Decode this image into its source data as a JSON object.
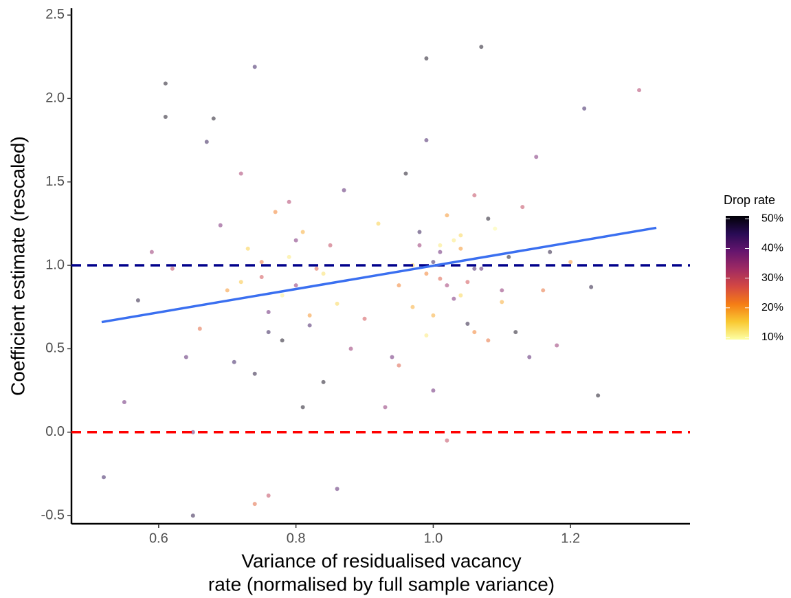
{
  "chart_data": {
    "type": "scatter",
    "xlabel": [
      "Variance of residualised vacancy",
      "rate (normalised by full sample variance)"
    ],
    "ylabel": "Coefficient estimate (rescaled)",
    "xlim": [
      0.473,
      1.374
    ],
    "ylim": [
      -0.549,
      2.541
    ],
    "xticks": [
      0.6,
      0.8,
      {
        "value": 1,
        "label": "1.0"
      },
      1.2
    ],
    "yticks": [
      -0.5,
      {
        "value": 0,
        "label": "0.0"
      },
      0.5,
      {
        "value": 1,
        "label": "1.0"
      },
      1.5,
      {
        "value": 2,
        "label": "2.0"
      },
      2.5
    ],
    "legend": {
      "title": "Drop rate",
      "clim": [
        9.3,
        51
      ],
      "ticks": [
        {
          "value": 10,
          "label": "10%"
        },
        {
          "value": 20,
          "label": "20%"
        },
        {
          "value": 30,
          "label": "30%"
        },
        {
          "value": 40,
          "label": "40%"
        },
        {
          "value": 50,
          "label": "50%"
        }
      ]
    },
    "colormap": [
      "#fcffa4",
      "#f9c932",
      "#f57d15",
      "#d44842",
      "#9f2a63",
      "#65156e",
      "#280b54",
      "#000004"
    ],
    "hlines": [
      {
        "y": 1,
        "color": "#00008b"
      },
      {
        "y": 0,
        "color": "#ff0000"
      }
    ],
    "fit": {
      "x": [
        0.517,
        1.325
      ],
      "y": [
        0.66,
        1.225
      ],
      "color": "#3a6ff0"
    },
    "points": {
      "x": [
        0.52,
        0.55,
        0.57,
        0.59,
        0.61,
        0.62,
        0.64,
        0.65,
        0.66,
        0.68,
        0.69,
        0.7,
        0.71,
        0.72,
        0.73,
        0.74,
        0.75,
        0.76,
        0.77,
        0.78,
        0.79,
        0.8,
        0.81,
        0.82,
        0.83,
        0.84,
        0.85,
        0.86,
        0.87,
        0.88,
        0.72,
        0.75,
        0.78,
        0.8,
        0.82,
        0.76,
        0.79,
        0.84,
        0.74,
        0.81,
        0.9,
        0.92,
        0.94,
        0.95,
        0.96,
        0.97,
        0.98,
        0.99,
        1.0,
        1.01,
        1.02,
        1.03,
        1.04,
        1.05,
        1.06,
        1.07,
        1.08,
        1.09,
        1.1,
        1.11,
        0.97,
        0.99,
        1.01,
        1.03,
        1.05,
        0.98,
        1.0,
        1.02,
        1.04,
        1.06,
        1.12,
        1.13,
        1.14,
        1.15,
        1.16,
        1.17,
        1.18,
        1.2,
        1.22,
        1.24,
        0.95,
        1.0,
        1.04,
        1.08,
        0.93,
        1.02,
        1.06,
        0.99,
        1.1,
        1.01,
        0.61,
        0.74,
        0.99,
        1.07,
        1.3,
        0.65,
        0.76,
        1.23,
        0.86,
        0.67
      ],
      "y": [
        -0.27,
        0.18,
        0.79,
        1.08,
        2.09,
        0.98,
        0.45,
        -0.5,
        0.62,
        1.88,
        1.24,
        0.85,
        0.42,
        1.55,
        1.1,
        0.35,
        0.93,
        0.72,
        1.32,
        0.55,
        1.05,
        0.88,
        1.2,
        0.64,
        0.98,
        0.3,
        1.12,
        0.77,
        1.45,
        0.5,
        0.9,
        1.02,
        0.82,
        1.15,
        0.7,
        0.6,
        1.38,
        0.95,
        -0.43,
        0.15,
        0.68,
        1.25,
        0.45,
        0.88,
        1.55,
        0.75,
        1.12,
        0.58,
        1.02,
        0.92,
        1.3,
        0.8,
        1.18,
        0.65,
        1.42,
        0.98,
        0.55,
        1.22,
        0.85,
        1.05,
        1.0,
        0.95,
        1.08,
        1.15,
        0.9,
        1.2,
        0.7,
        0.88,
        1.1,
        0.98,
        0.6,
        1.35,
        0.45,
        1.65,
        0.85,
        1.08,
        0.52,
        1.02,
        1.94,
        0.22,
        0.4,
        0.25,
        0.82,
        1.28,
        0.15,
        -0.05,
        0.6,
        1.75,
        0.78,
        1.12,
        1.89,
        2.19,
        2.24,
        2.31,
        2.05,
        0.0,
        -0.38,
        0.87,
        -0.34,
        1.74
      ],
      "drop": [
        45,
        40,
        48,
        35,
        50,
        30,
        42,
        47,
        25,
        50,
        38,
        20,
        45,
        33,
        15,
        48,
        28,
        40,
        22,
        50,
        12,
        36,
        18,
        44,
        26,
        50,
        30,
        14,
        42,
        35,
        16,
        24,
        11,
        38,
        20,
        46,
        32,
        13,
        25,
        50,
        28,
        15,
        40,
        22,
        50,
        18,
        35,
        12,
        45,
        26,
        20,
        38,
        14,
        48,
        30,
        42,
        24,
        10,
        36,
        50,
        16,
        22,
        40,
        12,
        28,
        46,
        18,
        34,
        20,
        44,
        50,
        30,
        42,
        38,
        24,
        48,
        35,
        20,
        45,
        50,
        26,
        40,
        14,
        50,
        36,
        30,
        22,
        44,
        18,
        12,
        50,
        45,
        50,
        50,
        32,
        40,
        30,
        48,
        42,
        46
      ]
    }
  }
}
